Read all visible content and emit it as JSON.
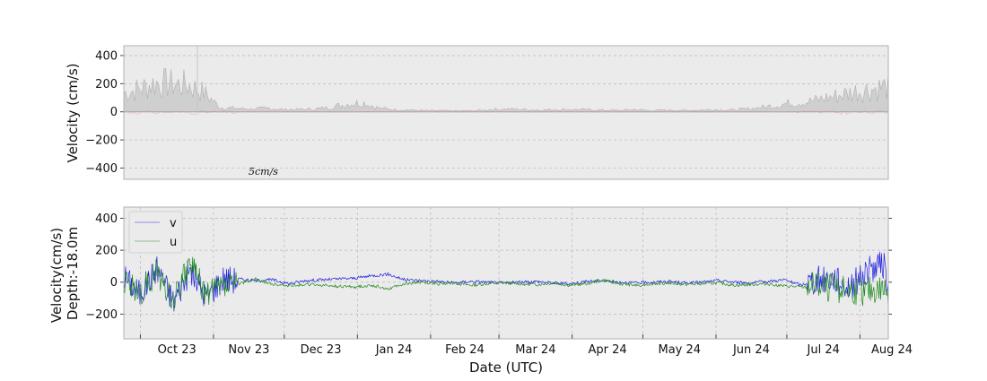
{
  "chart_data": [
    {
      "type": "area",
      "ylabel": "Velocity (cm/s)",
      "ylim": [
        -480,
        470
      ],
      "yticks": [
        -400,
        -200,
        0,
        200,
        400
      ],
      "x_range": [
        "2023-10-01",
        "2024-08-31"
      ],
      "grid": true,
      "scale_label": "5cm/s",
      "colors": {
        "background": "#ebebeb",
        "envelope": "#b8b8b8",
        "noise": "#e89a9a"
      },
      "series": [
        {
          "x": [
            "2023-10-01",
            "2023-10-08",
            "2023-10-15",
            "2023-10-22",
            "2023-10-29",
            "2023-11-05",
            "2023-11-12",
            "2023-11-19",
            "2023-11-26",
            "2023-12-03",
            "2023-12-10",
            "2023-12-17",
            "2023-12-24",
            "2023-12-31",
            "2024-01-07",
            "2024-01-14",
            "2024-01-21",
            "2024-01-28",
            "2024-02-04",
            "2024-02-11",
            "2024-02-18",
            "2024-02-25",
            "2024-03-03",
            "2024-03-10",
            "2024-03-17",
            "2024-03-24",
            "2024-03-31",
            "2024-04-07",
            "2024-04-14",
            "2024-04-21",
            "2024-04-28",
            "2024-05-05",
            "2024-05-12",
            "2024-05-19",
            "2024-05-26",
            "2024-06-02",
            "2024-06-09",
            "2024-06-16",
            "2024-06-23",
            "2024-06-30",
            "2024-07-07",
            "2024-07-14",
            "2024-07-21",
            "2024-07-28",
            "2024-08-04",
            "2024-08-11",
            "2024-08-18",
            "2024-08-25",
            "2024-08-31"
          ],
          "values": [
            160,
            200,
            250,
            240,
            230,
            170,
            40,
            30,
            25,
            30,
            20,
            20,
            25,
            40,
            70,
            80,
            30,
            20,
            15,
            10,
            10,
            8,
            10,
            20,
            25,
            20,
            15,
            20,
            20,
            18,
            15,
            12,
            20,
            10,
            15,
            12,
            15,
            20,
            15,
            25,
            40,
            60,
            80,
            90,
            120,
            150,
            180,
            200,
            220
          ]
        }
      ]
    },
    {
      "type": "line",
      "xlabel": "Date (UTC)",
      "ylabel": "Velocity(cm/s)",
      "ylabel2": "Depth:-18.0m",
      "ylim": [
        -355,
        470
      ],
      "yticks": [
        -200,
        0,
        200,
        400
      ],
      "xticks": [
        "Oct 23",
        "Nov 23",
        "Dec 23",
        "Jan 24",
        "Feb 24",
        "Mar 24",
        "Apr 24",
        "May 24",
        "Jun 24",
        "Jul 24",
        "Aug 24"
      ],
      "xtick_dates": [
        "2023-10-01",
        "2023-11-01",
        "2023-12-01",
        "2024-01-01",
        "2024-02-01",
        "2024-03-01",
        "2024-04-01",
        "2024-05-01",
        "2024-06-01",
        "2024-07-01",
        "2024-08-01"
      ],
      "x_range": [
        "2023-09-24",
        "2024-08-13"
      ],
      "grid": true,
      "legend": "top-left",
      "colors": {
        "background": "#ebebeb",
        "v": "#2020e0",
        "u": "#1e8a1e"
      },
      "series": [
        {
          "name": "v",
          "x": [
            "2023-09-24",
            "2023-10-01",
            "2023-10-08",
            "2023-10-15",
            "2023-10-22",
            "2023-10-29",
            "2023-11-05",
            "2023-11-12",
            "2023-11-19",
            "2023-11-26",
            "2023-12-03",
            "2023-12-10",
            "2023-12-17",
            "2023-12-24",
            "2023-12-31",
            "2024-01-07",
            "2024-01-14",
            "2024-01-21",
            "2024-01-28",
            "2024-02-04",
            "2024-02-11",
            "2024-02-18",
            "2024-02-25",
            "2024-03-03",
            "2024-03-10",
            "2024-03-17",
            "2024-03-24",
            "2024-03-31",
            "2024-04-07",
            "2024-04-14",
            "2024-04-21",
            "2024-04-28",
            "2024-05-05",
            "2024-05-12",
            "2024-05-19",
            "2024-05-26",
            "2024-06-02",
            "2024-06-09",
            "2024-06-16",
            "2024-06-23",
            "2024-06-30",
            "2024-07-07",
            "2024-07-14",
            "2024-07-21",
            "2024-07-28",
            "2024-08-04",
            "2024-08-11",
            "2024-08-13"
          ],
          "values": [
            60,
            -120,
            150,
            -200,
            120,
            -150,
            40,
            20,
            10,
            15,
            -10,
            10,
            15,
            20,
            25,
            40,
            50,
            15,
            10,
            5,
            -5,
            5,
            0,
            -5,
            0,
            5,
            -5,
            -10,
            5,
            10,
            0,
            -5,
            0,
            5,
            -5,
            0,
            10,
            0,
            -5,
            5,
            15,
            -20,
            20,
            40,
            -50,
            120,
            180,
            -60
          ]
        },
        {
          "name": "u",
          "x": [
            "2023-09-24",
            "2023-10-01",
            "2023-10-08",
            "2023-10-15",
            "2023-10-22",
            "2023-10-29",
            "2023-11-05",
            "2023-11-12",
            "2023-11-19",
            "2023-11-26",
            "2023-12-03",
            "2023-12-10",
            "2023-12-17",
            "2023-12-24",
            "2023-12-31",
            "2024-01-07",
            "2024-01-14",
            "2024-01-21",
            "2024-01-28",
            "2024-02-04",
            "2024-02-11",
            "2024-02-18",
            "2024-02-25",
            "2024-03-03",
            "2024-03-10",
            "2024-03-17",
            "2024-03-24",
            "2024-03-31",
            "2024-04-07",
            "2024-04-14",
            "2024-04-21",
            "2024-04-28",
            "2024-05-05",
            "2024-05-12",
            "2024-05-19",
            "2024-05-26",
            "2024-06-02",
            "2024-06-09",
            "2024-06-16",
            "2024-06-23",
            "2024-06-30",
            "2024-07-07",
            "2024-07-14",
            "2024-07-21",
            "2024-07-28",
            "2024-08-04",
            "2024-08-11",
            "2024-08-13"
          ],
          "values": [
            40,
            -140,
            100,
            -180,
            200,
            -120,
            -30,
            -10,
            20,
            -15,
            -20,
            -15,
            -20,
            -25,
            -30,
            -20,
            -40,
            -10,
            0,
            -10,
            -5,
            -20,
            -10,
            -5,
            -10,
            -15,
            -5,
            -20,
            -10,
            15,
            -10,
            -20,
            -10,
            -5,
            -15,
            -10,
            -5,
            -20,
            -15,
            -10,
            -25,
            -30,
            -40,
            -60,
            -90,
            -100,
            -70,
            -120
          ]
        }
      ]
    }
  ]
}
